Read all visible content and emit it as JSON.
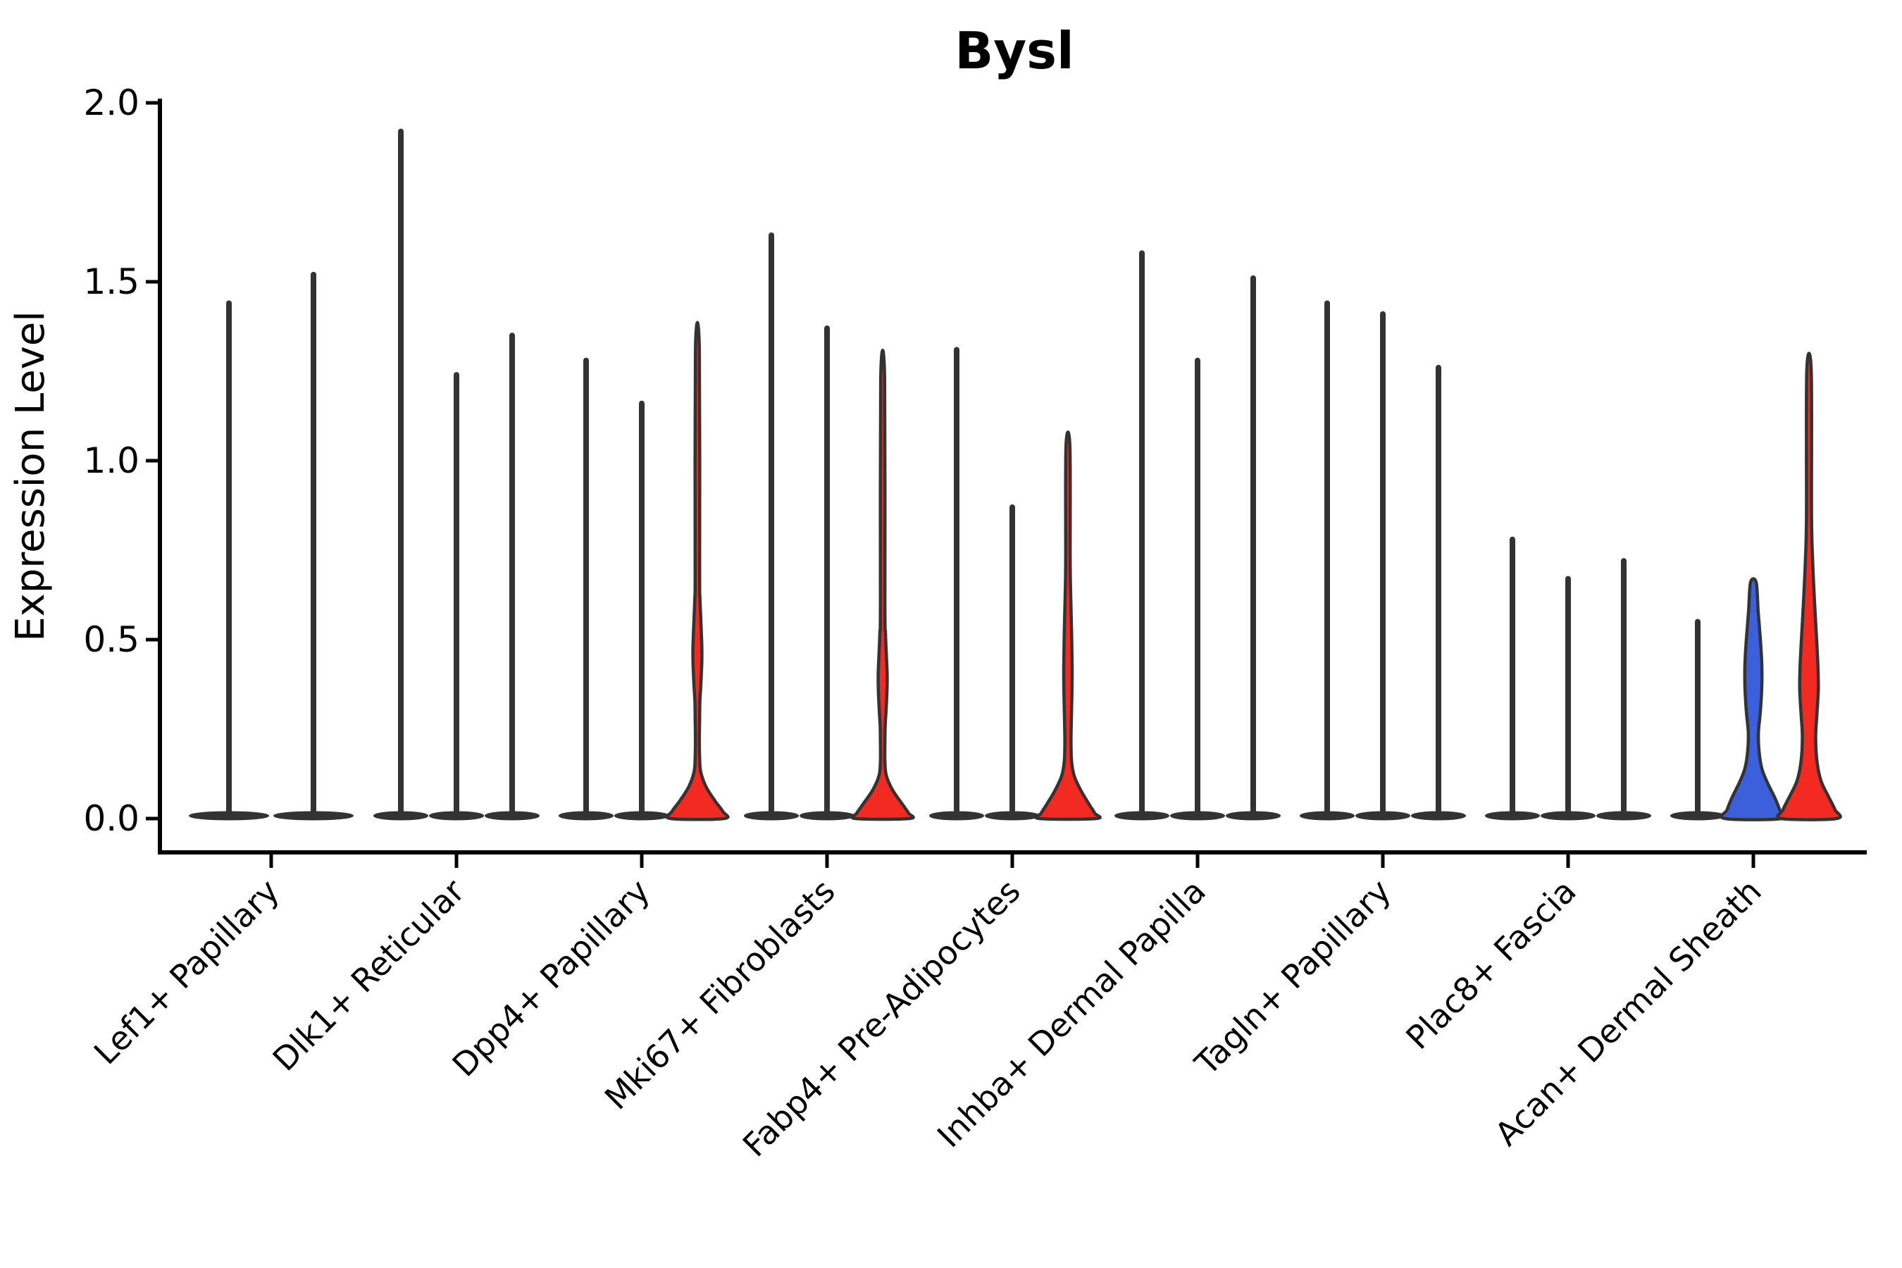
{
  "chart_data": {
    "type": "violin",
    "title": "Bysl",
    "ylabel": "Expression Level",
    "xlabel": "",
    "ylim": [
      -0.1,
      2.01
    ],
    "yticks": [
      "0.0",
      "0.5",
      "1.0",
      "1.5",
      "2.0"
    ],
    "ytick_values": [
      0.0,
      0.5,
      1.0,
      1.5,
      2.0
    ],
    "grid": false,
    "legend_position": "none",
    "colors": {
      "red_fill": "#F32A21",
      "blue_fill": "#3C60DC",
      "violin_outline": "#333333",
      "axis_color": "#000000"
    },
    "categories": [
      "Lef1+ Papillary",
      "Dlk1+ Reticular",
      "Dpp4+ Papillary",
      "Mki67+ Fibroblasts",
      "Fabp4+ Pre-Adipocytes",
      "Inhba+ Dermal Papilla",
      "Tagln+ Papillary",
      "Plac8+ Fascia",
      "Acan+ Dermal Sheath"
    ],
    "groups": [
      {
        "label": "Lef1+ Papillary",
        "violins": [
          {
            "max": 1.44,
            "color": "black"
          },
          {
            "max": 1.52,
            "color": "black"
          }
        ]
      },
      {
        "label": "Dlk1+ Reticular",
        "violins": [
          {
            "max": 1.92,
            "color": "black"
          },
          {
            "max": 1.24,
            "color": "black"
          },
          {
            "max": 1.35,
            "color": "black"
          }
        ]
      },
      {
        "label": "Dpp4+ Papillary",
        "violins": [
          {
            "max": 1.28,
            "color": "black"
          },
          {
            "max": 1.16,
            "color": "black"
          },
          {
            "max": 1.31,
            "color": "red",
            "shape": [
              [
                1.31,
                0.07
              ],
              [
                0.7,
                0.08
              ],
              [
                0.62,
                0.09
              ],
              [
                0.56,
                0.12
              ],
              [
                0.5,
                0.15
              ],
              [
                0.46,
                0.16
              ],
              [
                0.42,
                0.15
              ],
              [
                0.37,
                0.12
              ],
              [
                0.33,
                0.09
              ],
              [
                0.28,
                0.08
              ],
              [
                0.22,
                0.07
              ],
              [
                0.17,
                0.08
              ],
              [
                0.13,
                0.12
              ],
              [
                0.09,
                0.3
              ],
              [
                0.05,
                0.62
              ],
              [
                0.02,
                0.9
              ],
              [
                0.0,
                0.95
              ]
            ]
          }
        ]
      },
      {
        "label": "Mki67+ Fibroblasts",
        "violins": [
          {
            "max": 1.63,
            "color": "black"
          },
          {
            "max": 1.37,
            "color": "black"
          },
          {
            "max": 1.23,
            "color": "red",
            "shape": [
              [
                1.23,
                0.07
              ],
              [
                0.6,
                0.08
              ],
              [
                0.52,
                0.1
              ],
              [
                0.46,
                0.13
              ],
              [
                0.4,
                0.16
              ],
              [
                0.35,
                0.15
              ],
              [
                0.3,
                0.12
              ],
              [
                0.26,
                0.09
              ],
              [
                0.21,
                0.08
              ],
              [
                0.16,
                0.08
              ],
              [
                0.12,
                0.13
              ],
              [
                0.08,
                0.35
              ],
              [
                0.04,
                0.7
              ],
              [
                0.015,
                0.92
              ],
              [
                0.0,
                0.95
              ]
            ]
          }
        ]
      },
      {
        "label": "Fabp4+ Pre-Adipocytes",
        "violins": [
          {
            "max": 1.31,
            "color": "black"
          },
          {
            "max": 0.87,
            "color": "black"
          },
          {
            "max": 1.04,
            "color": "red",
            "shape": [
              [
                1.04,
                0.07
              ],
              [
                0.72,
                0.08
              ],
              [
                0.62,
                0.1
              ],
              [
                0.52,
                0.13
              ],
              [
                0.42,
                0.15
              ],
              [
                0.34,
                0.14
              ],
              [
                0.27,
                0.12
              ],
              [
                0.21,
                0.11
              ],
              [
                0.16,
                0.13
              ],
              [
                0.12,
                0.22
              ],
              [
                0.08,
                0.45
              ],
              [
                0.04,
                0.75
              ],
              [
                0.015,
                0.95
              ],
              [
                0.0,
                1.0
              ]
            ]
          }
        ]
      },
      {
        "label": "Inhba+ Dermal Papilla",
        "violins": [
          {
            "max": 1.58,
            "color": "black"
          },
          {
            "max": 1.28,
            "color": "black"
          },
          {
            "max": 1.51,
            "color": "black"
          }
        ]
      },
      {
        "label": "Tagln+ Papillary",
        "violins": [
          {
            "max": 1.44,
            "color": "black"
          },
          {
            "max": 1.41,
            "color": "black"
          },
          {
            "max": 1.26,
            "color": "black"
          }
        ]
      },
      {
        "label": "Plac8+ Fascia",
        "violins": [
          {
            "max": 0.78,
            "color": "black"
          },
          {
            "max": 0.67,
            "color": "black"
          },
          {
            "max": 0.72,
            "color": "black"
          }
        ]
      },
      {
        "label": "Acan+ Dermal Sheath",
        "violins": [
          {
            "max": 0.55,
            "color": "black"
          },
          {
            "max": 0.66,
            "color": "blue",
            "shape": [
              [
                0.66,
                0.1
              ],
              [
                0.58,
                0.17
              ],
              [
                0.5,
                0.25
              ],
              [
                0.43,
                0.3
              ],
              [
                0.37,
                0.3
              ],
              [
                0.3,
                0.25
              ],
              [
                0.24,
                0.18
              ],
              [
                0.19,
                0.2
              ],
              [
                0.14,
                0.3
              ],
              [
                0.1,
                0.5
              ],
              [
                0.06,
                0.75
              ],
              [
                0.025,
                0.93
              ],
              [
                0.0,
                1.0
              ]
            ]
          },
          {
            "max": 1.25,
            "color": "red",
            "shape": [
              [
                1.25,
                0.08
              ],
              [
                0.85,
                0.09
              ],
              [
                0.72,
                0.13
              ],
              [
                0.6,
                0.2
              ],
              [
                0.5,
                0.27
              ],
              [
                0.42,
                0.32
              ],
              [
                0.36,
                0.33
              ],
              [
                0.29,
                0.28
              ],
              [
                0.24,
                0.24
              ],
              [
                0.19,
                0.25
              ],
              [
                0.14,
                0.32
              ],
              [
                0.1,
                0.45
              ],
              [
                0.06,
                0.7
              ],
              [
                0.025,
                0.92
              ],
              [
                0.0,
                0.98
              ]
            ]
          }
        ]
      }
    ]
  }
}
